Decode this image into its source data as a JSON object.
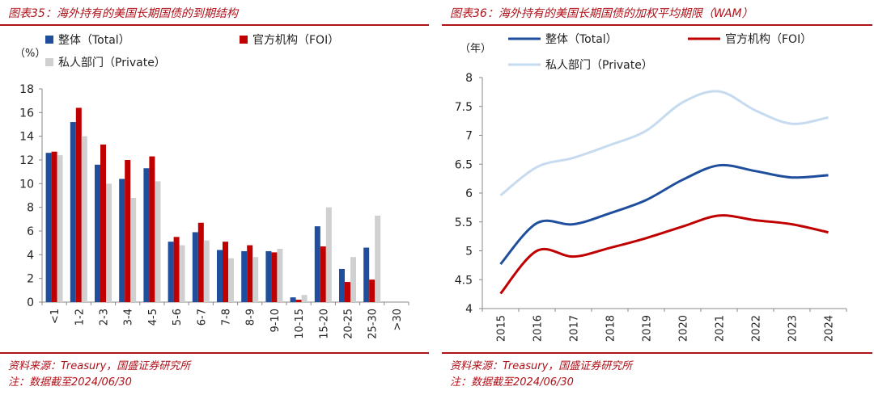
{
  "left": {
    "title": "图表35：海外持有的美国长期国债的到期结构",
    "source": "资料来源：Treasury，国盛证券研究所",
    "note": "注：数据截至2024/06/30",
    "chart_data": {
      "type": "bar",
      "ylabel": "（%）",
      "ylim": [
        0,
        18
      ],
      "yticks": [
        0,
        2,
        4,
        6,
        8,
        10,
        12,
        14,
        16,
        18
      ],
      "categories": [
        "<1",
        "1-2",
        "2-3",
        "3-4",
        "4-5",
        "5-6",
        "6-7",
        "7-8",
        "8-9",
        "9-10",
        "10-15",
        "15-20",
        "20-25",
        "25-30",
        ">30"
      ],
      "series": [
        {
          "name": "整体（Total）",
          "color": "#1f4e9c",
          "values": [
            12.6,
            15.2,
            11.6,
            10.4,
            11.3,
            5.1,
            5.9,
            4.4,
            4.3,
            4.3,
            0.4,
            6.4,
            2.8,
            4.6,
            0
          ]
        },
        {
          "name": "官方机构（FOI）",
          "color": "#c00000",
          "values": [
            12.7,
            16.4,
            13.3,
            12.0,
            12.3,
            5.5,
            6.7,
            5.1,
            4.8,
            4.2,
            0.2,
            4.7,
            1.7,
            1.9,
            0
          ]
        },
        {
          "name": "私人部门（Private）",
          "color": "#d0d0d0",
          "values": [
            12.4,
            14.0,
            10.0,
            8.8,
            10.2,
            4.8,
            5.2,
            3.7,
            3.8,
            4.5,
            0.6,
            8.0,
            3.8,
            7.3,
            0
          ]
        }
      ],
      "legend": "top"
    }
  },
  "right": {
    "title": "图表36：海外持有的美国长期国债的加权平均期限（WAM）",
    "source": "资料来源：Treasury，国盛证券研究所",
    "note": "注：数据截至2024/06/30",
    "chart_data": {
      "type": "line",
      "ylabel": "（年）",
      "ylim": [
        4,
        8
      ],
      "yticks": [
        4,
        4.5,
        5,
        5.5,
        6,
        6.5,
        7,
        7.5,
        8
      ],
      "categories": [
        "2015",
        "2016",
        "2017",
        "2018",
        "2019",
        "2020",
        "2021",
        "2022",
        "2023",
        "2024"
      ],
      "series": [
        {
          "name": "整体（Total）",
          "color": "#1f4e9c",
          "values": [
            4.77,
            5.48,
            5.46,
            5.65,
            5.88,
            6.23,
            6.48,
            6.38,
            6.27,
            6.31
          ]
        },
        {
          "name": "官方机构（FOI）",
          "color": "#c00000",
          "values": [
            4.26,
            5.0,
            4.9,
            5.05,
            5.22,
            5.42,
            5.61,
            5.53,
            5.46,
            5.32
          ]
        },
        {
          "name": "私人部门（Private）",
          "color": "#c6dbef",
          "values": [
            5.96,
            6.45,
            6.61,
            6.83,
            7.08,
            7.57,
            7.76,
            7.43,
            7.2,
            7.31
          ]
        }
      ],
      "legend": "top"
    }
  }
}
